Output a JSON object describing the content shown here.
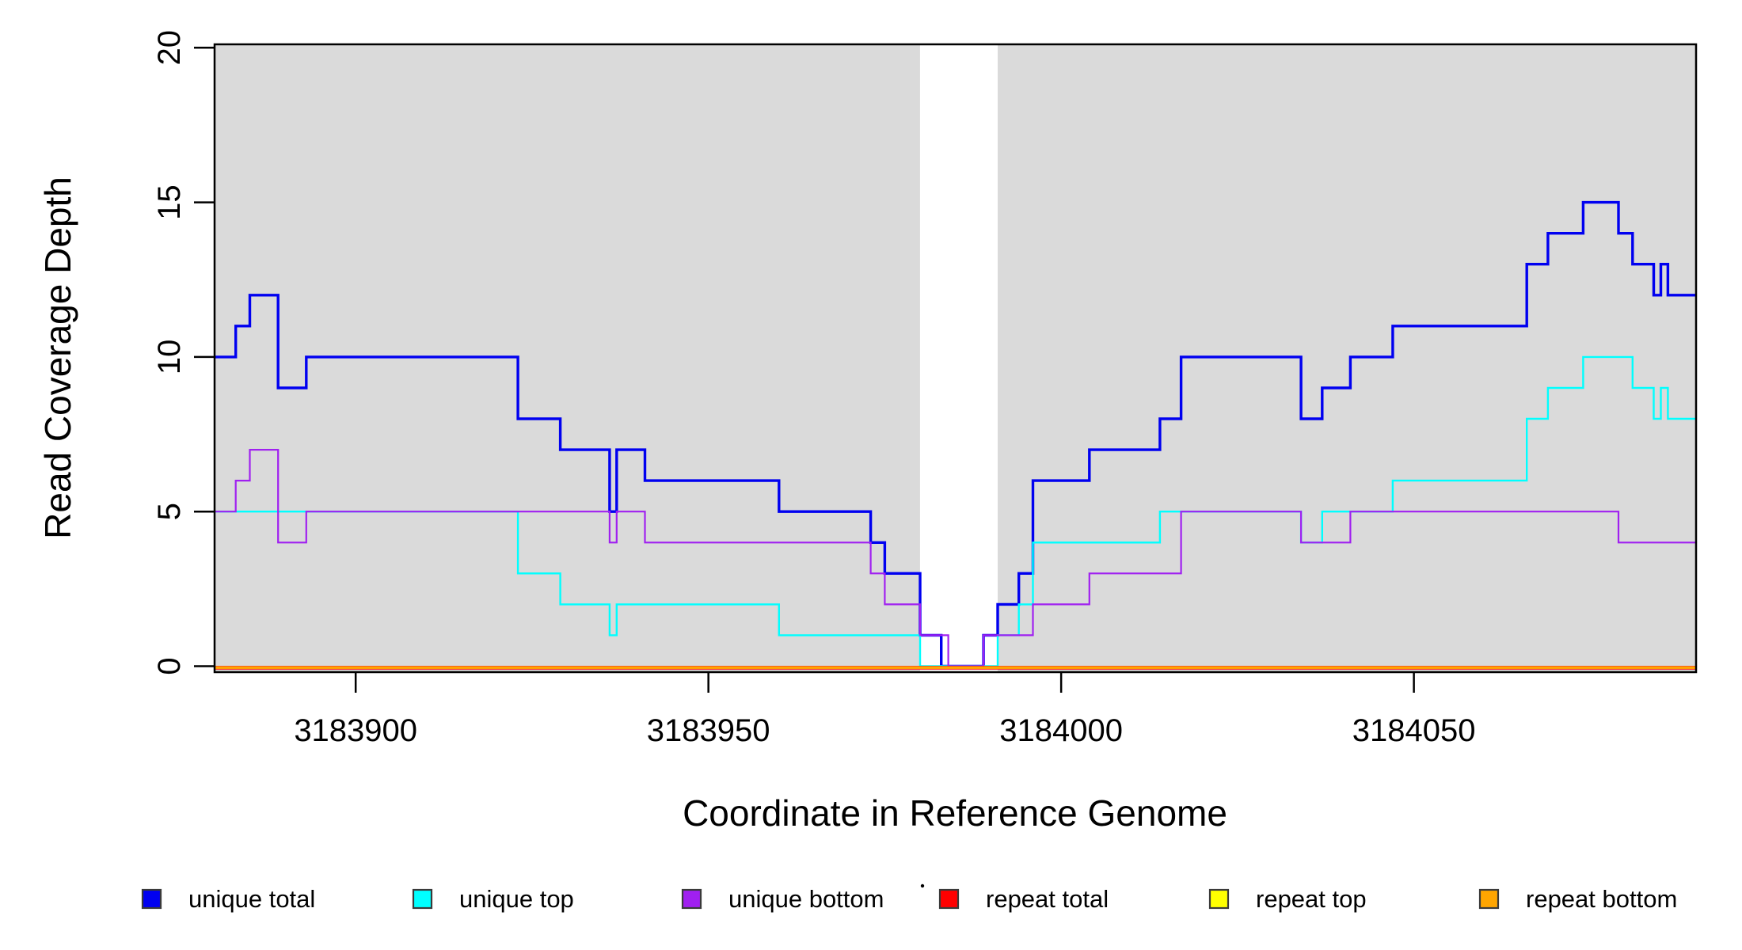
{
  "chart_data": {
    "type": "line",
    "subtype": "step-coverage",
    "title": "",
    "xlabel": "Coordinate in Reference Genome",
    "ylabel": "Read Coverage Depth",
    "x_range": [
      3183880,
      3184090
    ],
    "y_range": [
      0,
      20
    ],
    "x_ticks": [
      3183900,
      3183950,
      3184000,
      3184050
    ],
    "y_ticks": [
      0,
      5,
      10,
      15,
      20
    ],
    "grid": false,
    "background_shading": {
      "color": "#DADADA",
      "regions": [
        {
          "from": 3183880,
          "to": 3183980
        },
        {
          "from": 3183991,
          "to": 3184090
        }
      ]
    },
    "legend_position": "bottom",
    "series": [
      {
        "name": "unique total",
        "color": "#0000F0",
        "width": 3.4,
        "baseline_offset": 0,
        "points": [
          [
            3183880,
            10
          ],
          [
            3183883,
            11
          ],
          [
            3183885,
            12
          ],
          [
            3183889,
            9
          ],
          [
            3183893,
            10
          ],
          [
            3183923,
            8
          ],
          [
            3183929,
            7
          ],
          [
            3183936,
            5
          ],
          [
            3183937,
            7
          ],
          [
            3183941,
            6
          ],
          [
            3183960,
            5
          ],
          [
            3183973,
            4
          ],
          [
            3183975,
            3
          ],
          [
            3183980,
            1
          ],
          [
            3183983,
            0
          ],
          [
            3183989,
            1
          ],
          [
            3183991,
            2
          ],
          [
            3183994,
            3
          ],
          [
            3183996,
            6
          ],
          [
            3184004,
            7
          ],
          [
            3184014,
            8
          ],
          [
            3184017,
            10
          ],
          [
            3184034,
            8
          ],
          [
            3184037,
            9
          ],
          [
            3184041,
            10
          ],
          [
            3184047,
            11
          ],
          [
            3184066,
            13
          ],
          [
            3184069,
            14
          ],
          [
            3184074,
            15
          ],
          [
            3184079,
            14
          ],
          [
            3184081,
            13
          ],
          [
            3184084,
            12
          ],
          [
            3184085,
            13
          ],
          [
            3184086,
            12
          ]
        ]
      },
      {
        "name": "unique top",
        "color": "#00FFFF",
        "width": 2.4,
        "baseline_offset": 0,
        "points": [
          [
            3183880,
            5
          ],
          [
            3183923,
            3
          ],
          [
            3183929,
            2
          ],
          [
            3183936,
            1
          ],
          [
            3183937,
            2
          ],
          [
            3183960,
            1
          ],
          [
            3183980,
            0
          ],
          [
            3183991,
            1
          ],
          [
            3183994,
            2
          ],
          [
            3183996,
            4
          ],
          [
            3184014,
            5
          ],
          [
            3184034,
            4
          ],
          [
            3184037,
            5
          ],
          [
            3184047,
            6
          ],
          [
            3184066,
            8
          ],
          [
            3184069,
            9
          ],
          [
            3184074,
            10
          ],
          [
            3184081,
            9
          ],
          [
            3184084,
            8
          ],
          [
            3184085,
            9
          ],
          [
            3184086,
            8
          ]
        ]
      },
      {
        "name": "unique bottom",
        "color": "#A020F0",
        "width": 2.2,
        "baseline_offset": 0,
        "points": [
          [
            3183880,
            5
          ],
          [
            3183883,
            6
          ],
          [
            3183885,
            7
          ],
          [
            3183889,
            4
          ],
          [
            3183893,
            5
          ],
          [
            3183936,
            4
          ],
          [
            3183937,
            5
          ],
          [
            3183941,
            4
          ],
          [
            3183973,
            3
          ],
          [
            3183975,
            2
          ],
          [
            3183980,
            1
          ],
          [
            3183984,
            0
          ],
          [
            3183989,
            1
          ],
          [
            3183996,
            2
          ],
          [
            3184004,
            3
          ],
          [
            3184017,
            5
          ],
          [
            3184034,
            4
          ],
          [
            3184041,
            5
          ],
          [
            3184079,
            4
          ]
        ]
      },
      {
        "name": "repeat total",
        "color": "#FF0000",
        "width": 4.6,
        "baseline_offset": 1.9,
        "points": [
          [
            3183880,
            0
          ]
        ]
      },
      {
        "name": "repeat top",
        "color": "#FFFF00",
        "width": 2.6,
        "baseline_offset": 1.9,
        "points": [
          [
            3183880,
            0
          ]
        ]
      },
      {
        "name": "repeat bottom",
        "color": "#FFA500",
        "width": 3.2,
        "baseline_offset": 1.7,
        "points": [
          [
            3183880,
            0
          ]
        ]
      }
    ],
    "legend": [
      {
        "label": "unique total",
        "color": "#0000F0"
      },
      {
        "label": "unique top",
        "color": "#00FFFF"
      },
      {
        "label": "unique bottom",
        "color": "#A020F0"
      },
      {
        "label": "repeat total",
        "color": "#FF0000"
      },
      {
        "label": "repeat top",
        "color": "#FFFF00"
      },
      {
        "label": "repeat bottom",
        "color": "#FFA500"
      }
    ]
  }
}
